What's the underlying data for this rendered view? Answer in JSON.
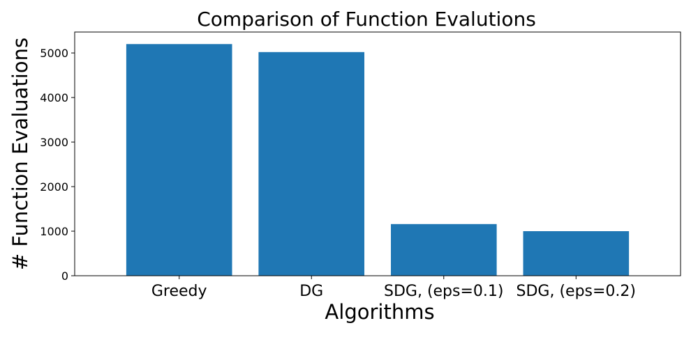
{
  "chart_data": {
    "type": "bar",
    "title": "Comparison of Function Evalutions",
    "xlabel": "Algorithms",
    "ylabel": "# Function Evaluations",
    "categories": [
      "Greedy",
      "DG",
      "SDG, (eps=0.1)",
      "SDG, (eps=0.2)"
    ],
    "values": [
      5200,
      5020,
      1160,
      1000
    ],
    "ylim": [
      0,
      5470
    ],
    "yticks": [
      0,
      1000,
      2000,
      3000,
      4000,
      5000
    ],
    "ytick_labels": [
      "0",
      "1000",
      "2000",
      "3000",
      "4000",
      "5000"
    ],
    "bar_color": "#1f77b4",
    "grid": false,
    "legend": "none"
  }
}
